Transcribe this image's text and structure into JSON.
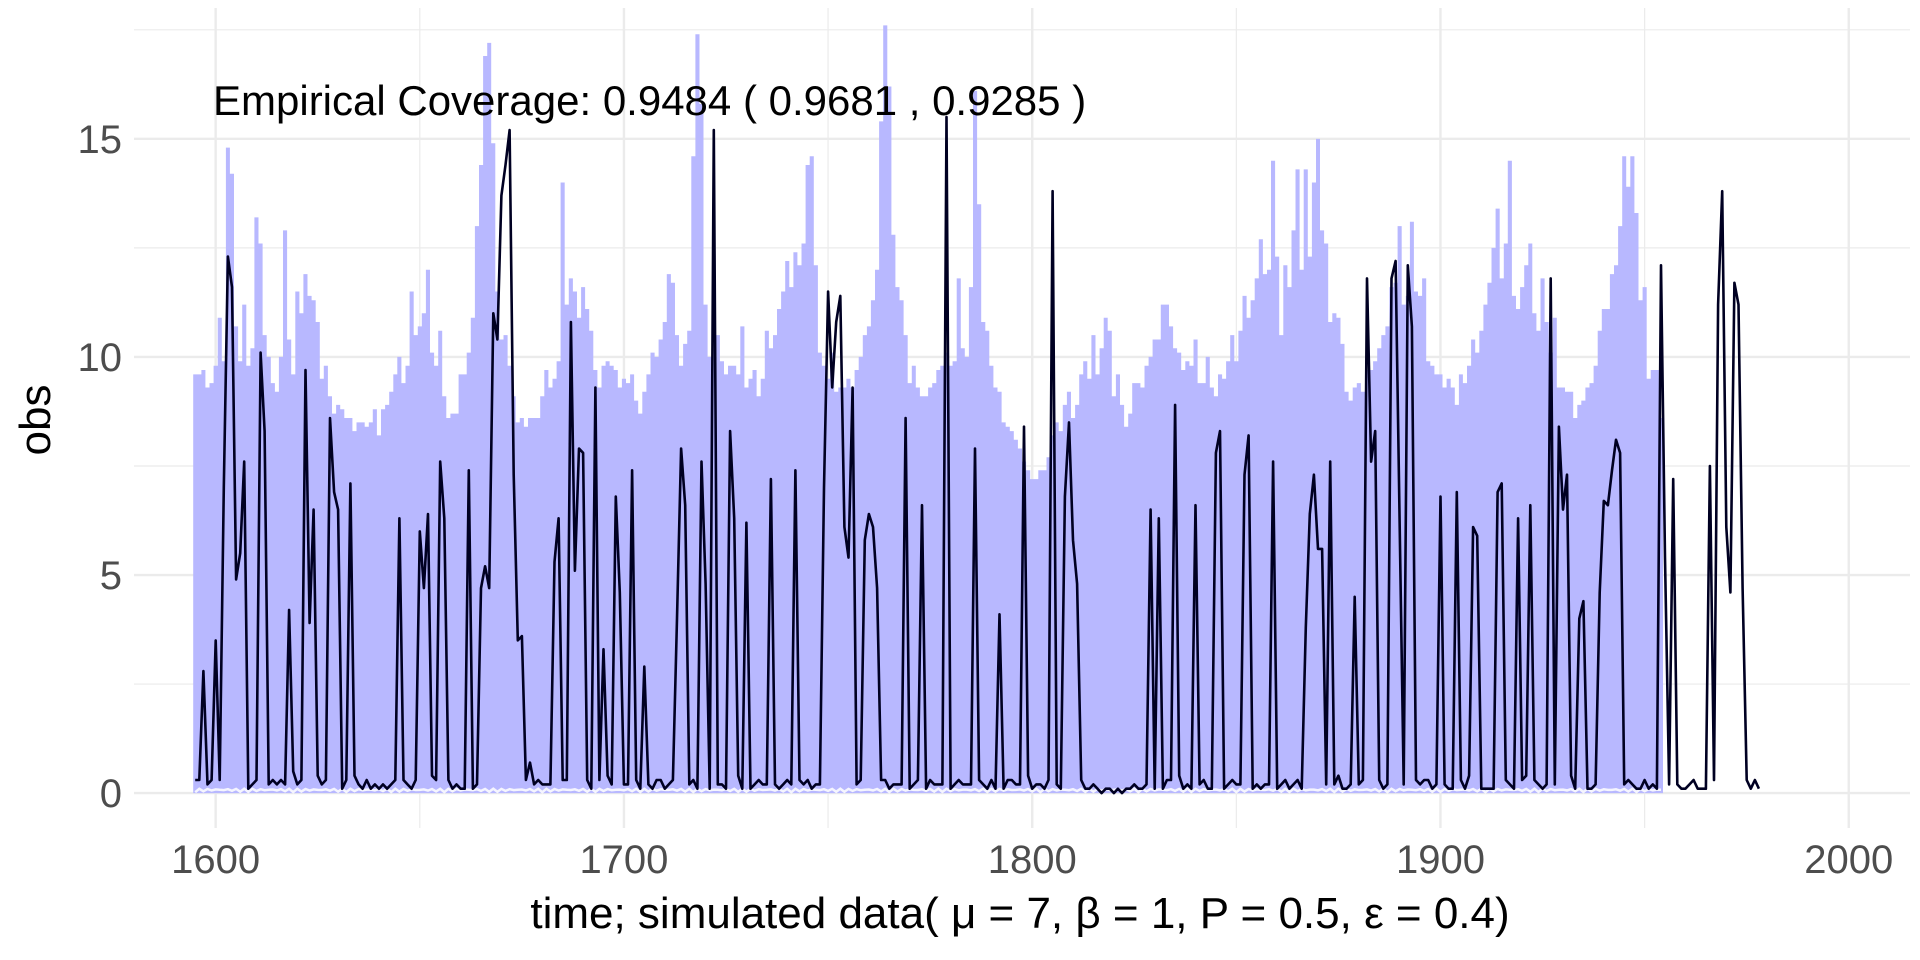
{
  "chart_data": {
    "type": "area",
    "annotation": "Empirical Coverage: 0.9484 ( 0.9681 , 0.9285 )",
    "xlabel": "time; simulated data( μ = 7,  β = 1,  P = 0.5,  ε = 0.4)",
    "ylabel": "obs",
    "xlim": [
      1580,
      2015
    ],
    "ylim": [
      -0.8,
      18
    ],
    "xticks": [
      1600,
      1700,
      1800,
      1900,
      2000
    ],
    "yticks": [
      0,
      5,
      10,
      15
    ],
    "grid": true,
    "colors": {
      "band": "#b8b8ff",
      "line": "#000022",
      "grid": "#ebebeb",
      "tick_text": "#4d4d4d"
    },
    "x_start": 1595,
    "band_upper": [
      9.6,
      9.6,
      9.7,
      9.3,
      9.4,
      9.8,
      10.9,
      9.9,
      14.8,
      14.2,
      10.7,
      9.9,
      11.2,
      9.8,
      10.2,
      13.2,
      12.6,
      10.5,
      10.0,
      9.4,
      9.2,
      10.0,
      12.9,
      10.4,
      9.6,
      11.5,
      11.0,
      11.9,
      11.4,
      11.3,
      10.8,
      9.5,
      9.8,
      9.1,
      8.7,
      8.9,
      8.8,
      8.6,
      8.6,
      8.3,
      8.5,
      8.5,
      8.4,
      8.5,
      8.8,
      8.2,
      8.8,
      8.9,
      9.2,
      9.6,
      10.0,
      9.4,
      9.8,
      11.5,
      10.5,
      10.7,
      11.0,
      12.0,
      10.1,
      9.8,
      10.6,
      9.1,
      8.6,
      8.7,
      8.7,
      9.6,
      9.6,
      10.1,
      10.9,
      13.0,
      14.4,
      16.9,
      17.2,
      14.9,
      11.5,
      10.4,
      10.5,
      9.8,
      9.1,
      8.5,
      8.6,
      8.4,
      8.6,
      8.6,
      8.6,
      9.1,
      9.7,
      9.3,
      9.5,
      9.9,
      14.0,
      11.2,
      11.8,
      11.5,
      10.9,
      11.6,
      11.1,
      10.6,
      9.7,
      9.3,
      9.8,
      9.9,
      9.8,
      9.7,
      9.3,
      9.5,
      9.4,
      9.6,
      9.0,
      8.7,
      9.2,
      9.6,
      10.1,
      10.0,
      10.4,
      10.8,
      11.9,
      11.7,
      10.5,
      9.8,
      10.3,
      10.6,
      14.6,
      17.4,
      15.8,
      11.2,
      10.0,
      10.8,
      10.5,
      9.9,
      9.6,
      9.8,
      9.8,
      9.6,
      10.7,
      9.3,
      9.5,
      9.7,
      9.1,
      9.5,
      10.6,
      10.2,
      10.5,
      11.1,
      11.5,
      12.2,
      11.6,
      12.4,
      12.1,
      12.6,
      14.4,
      14.6,
      12.1,
      10.1,
      9.8,
      9.5,
      10.1,
      9.2,
      9.3,
      9.3,
      9.5,
      9.3,
      9.7,
      10.0,
      10.5,
      10.7,
      11.3,
      12.0,
      15.4,
      17.6,
      16.2,
      12.8,
      11.6,
      11.3,
      10.5,
      9.4,
      9.8,
      9.3,
      9.1,
      9.1,
      9.3,
      9.4,
      9.7,
      9.8,
      10.1,
      9.8,
      9.9,
      11.8,
      10.2,
      10.0,
      11.6,
      16.1,
      13.5,
      10.8,
      10.6,
      9.8,
      9.3,
      9.2,
      8.5,
      8.4,
      8.3,
      8.1,
      7.9,
      7.6,
      7.4,
      7.2,
      7.2,
      7.4,
      7.4,
      7.7,
      8.2,
      8.5,
      8.3,
      8.9,
      9.2,
      8.6,
      8.9,
      9.6,
      9.9,
      9.5,
      10.5,
      9.6,
      10.2,
      10.9,
      10.6,
      9.1,
      9.6,
      8.9,
      8.4,
      8.7,
      9.4,
      9.4,
      9.3,
      9.8,
      10.0,
      10.4,
      10.4,
      11.2,
      11.2,
      10.7,
      10.2,
      10.1,
      9.7,
      9.9,
      9.8,
      10.4,
      9.4,
      9.4,
      10.0,
      9.3,
      9.1,
      9.6,
      9.5,
      9.9,
      10.5,
      9.9,
      10.6,
      11.4,
      10.9,
      11.3,
      11.8,
      12.7,
      11.9,
      12.0,
      14.5,
      12.3,
      10.5,
      12.1,
      11.6,
      12.9,
      14.3,
      12.0,
      14.3,
      12.3,
      14.0,
      15.0,
      12.9,
      12.6,
      10.8,
      11.0,
      10.9,
      10.3,
      9.2,
      9.0,
      9.3,
      9.4,
      9.2,
      9.7,
      9.7,
      9.9,
      10.2,
      10.5,
      10.7,
      11.6,
      11.7,
      13.0,
      11.2,
      11.4,
      13.1,
      11.5,
      11.4,
      11.8,
      9.9,
      9.8,
      9.6,
      9.6,
      9.3,
      9.5,
      9.3,
      8.9,
      9.6,
      9.4,
      9.8,
      10.4,
      10.1,
      10.6,
      11.2,
      11.7,
      12.5,
      13.4,
      11.8,
      12.6,
      14.5,
      11.4,
      11.1,
      11.6,
      12.1,
      12.6,
      11.0,
      10.6,
      11.8,
      10.8,
      10.1,
      10.9,
      9.3,
      9.3,
      9.2,
      9.2,
      8.6,
      8.9,
      9.0,
      9.3,
      9.4,
      9.8,
      10.6,
      11.1,
      11.1,
      11.9,
      12.1,
      13.0,
      14.6,
      13.9,
      14.6,
      13.3,
      11.3,
      11.6,
      9.5,
      9.7,
      9.7,
      8.6
    ],
    "values": [
      0.3,
      0.3,
      2.8,
      0.2,
      0.3,
      3.5,
      0.3,
      7.0,
      12.3,
      11.6,
      4.9,
      5.5,
      7.6,
      0.1,
      0.2,
      0.3,
      10.1,
      8.3,
      0.2,
      0.3,
      0.2,
      0.3,
      0.2,
      4.2,
      0.5,
      0.2,
      0.3,
      9.7,
      3.9,
      6.5,
      0.4,
      0.2,
      0.3,
      8.6,
      6.9,
      6.5,
      0.1,
      0.3,
      7.1,
      0.4,
      0.2,
      0.1,
      0.3,
      0.1,
      0.2,
      0.1,
      0.2,
      0.1,
      0.2,
      0.3,
      6.3,
      0.3,
      0.2,
      0.1,
      0.3,
      6.0,
      4.7,
      6.4,
      0.4,
      0.3,
      7.6,
      6.3,
      0.3,
      0.1,
      0.2,
      0.1,
      0.1,
      7.4,
      0.1,
      0.2,
      4.7,
      5.2,
      4.7,
      11.0,
      10.4,
      13.7,
      14.4,
      15.2,
      7.3,
      3.5,
      3.6,
      0.3,
      0.7,
      0.2,
      0.3,
      0.2,
      0.2,
      0.2,
      5.3,
      6.3,
      0.3,
      0.3,
      10.8,
      5.1,
      7.9,
      7.8,
      0.3,
      0.1,
      9.3,
      0.3,
      3.3,
      0.4,
      0.2,
      6.8,
      4.6,
      0.2,
      0.2,
      7.4,
      0.3,
      0.1,
      2.9,
      0.2,
      0.1,
      0.3,
      0.3,
      0.1,
      0.2,
      0.3,
      4.0,
      7.9,
      6.6,
      0.2,
      0.3,
      0.1,
      7.6,
      4.8,
      0.1,
      15.2,
      0.2,
      0.2,
      0.1,
      8.3,
      6.3,
      0.4,
      0.1,
      6.2,
      0.1,
      0.2,
      0.3,
      0.2,
      0.2,
      7.2,
      0.2,
      0.1,
      0.2,
      0.3,
      0.2,
      7.4,
      0.3,
      0.2,
      0.3,
      0.1,
      0.2,
      0.2,
      7.0,
      11.5,
      9.3,
      10.8,
      11.4,
      6.1,
      5.4,
      9.3,
      0.2,
      0.3,
      5.8,
      6.4,
      6.1,
      4.7,
      0.3,
      0.3,
      0.1,
      0.2,
      0.2,
      0.2,
      8.6,
      0.1,
      0.2,
      0.3,
      6.6,
      0.1,
      0.3,
      0.2,
      0.2,
      0.2,
      15.5,
      0.1,
      0.2,
      0.3,
      0.2,
      0.2,
      0.2,
      7.9,
      0.3,
      0.2,
      0.1,
      0.3,
      0.1,
      4.1,
      0.1,
      0.3,
      0.3,
      0.2,
      0.2,
      8.4,
      0.4,
      0.1,
      0.2,
      0.2,
      0.1,
      0.3,
      13.8,
      0.2,
      0.1,
      6.8,
      8.5,
      5.8,
      4.8,
      0.3,
      0.1,
      0.1,
      0.2,
      0.1,
      0.0,
      0.1,
      0.1,
      0.0,
      0.1,
      0.0,
      0.1,
      0.1,
      0.2,
      0.1,
      0.1,
      0.2,
      6.5,
      0.1,
      6.3,
      0.1,
      0.3,
      0.3,
      8.9,
      0.4,
      0.1,
      0.2,
      0.1,
      6.6,
      0.2,
      0.3,
      0.1,
      0.1,
      7.8,
      8.3,
      0.1,
      0.2,
      0.3,
      0.2,
      0.2,
      7.3,
      8.2,
      0.1,
      0.2,
      0.1,
      0.2,
      0.2,
      7.6,
      0.1,
      0.2,
      0.3,
      0.1,
      0.2,
      0.3,
      0.1,
      3.8,
      6.4,
      7.3,
      5.6,
      5.6,
      0.2,
      7.6,
      0.2,
      0.4,
      0.1,
      0.1,
      0.2,
      4.5,
      0.2,
      0.3,
      11.8,
      7.6,
      8.3,
      0.3,
      0.1,
      0.2,
      11.8,
      12.2,
      6.1,
      0.2,
      12.1,
      10.7,
      0.3,
      0.2,
      0.3,
      0.3,
      0.1,
      0.2,
      6.8,
      0.2,
      0.1,
      0.1,
      6.9,
      0.3,
      0.1,
      0.4,
      6.1,
      5.9,
      0.1,
      0.1,
      0.1,
      0.1,
      6.9,
      7.1,
      0.3,
      0.2,
      0.1,
      6.3,
      0.3,
      0.4,
      6.6,
      0.3,
      0.2,
      0.1,
      0.2,
      11.8,
      0.2,
      8.4,
      6.5,
      7.3,
      0.4,
      0.1,
      4.0,
      4.4,
      0.1,
      0.1,
      0.2,
      4.6,
      6.7,
      6.6,
      7.4,
      8.1,
      7.8,
      0.2,
      0.3,
      0.2,
      0.1,
      0.1,
      0.3,
      0.1,
      0.2,
      0.1,
      12.1,
      5.4,
      0.2,
      7.2,
      0.2,
      0.1,
      0.1,
      0.2,
      0.3,
      0.1,
      0.1,
      0.1,
      7.5,
      0.3,
      11.2,
      13.8,
      6.1,
      4.6,
      11.7,
      11.2,
      4.7,
      0.3,
      0.1,
      0.3,
      0.1
    ]
  }
}
